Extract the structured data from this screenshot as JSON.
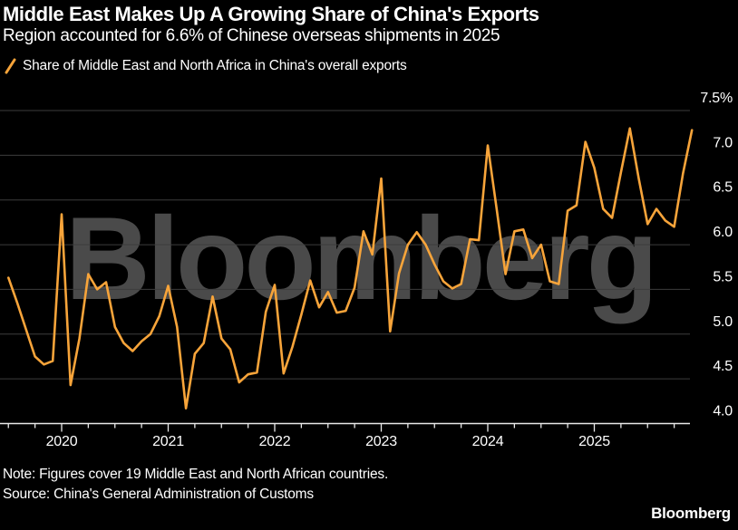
{
  "header": {
    "title": "Middle East Makes Up A Growing Share of China's Exports",
    "subtitle": "Region accounted for 6.6% of Chinese overseas shipments in 2025"
  },
  "legend": {
    "label": "Share of Middle East and North Africa in China's overall exports"
  },
  "chart_data": {
    "type": "line",
    "title": "Middle East Makes Up A Growing Share of China's Exports",
    "watermark": "Bloomberg",
    "grid": "horizontal",
    "x": [
      "2019-07",
      "2019-08",
      "2019-09",
      "2019-10",
      "2019-11",
      "2019-12",
      "2020-01",
      "2020-02",
      "2020-03",
      "2020-04",
      "2020-05",
      "2020-06",
      "2020-07",
      "2020-08",
      "2020-09",
      "2020-10",
      "2020-11",
      "2020-12",
      "2021-01",
      "2021-02",
      "2021-03",
      "2021-04",
      "2021-05",
      "2021-06",
      "2021-07",
      "2021-08",
      "2021-09",
      "2021-10",
      "2021-11",
      "2021-12",
      "2022-01",
      "2022-02",
      "2022-03",
      "2022-04",
      "2022-05",
      "2022-06",
      "2022-07",
      "2022-08",
      "2022-09",
      "2022-10",
      "2022-11",
      "2022-12",
      "2023-01",
      "2023-02",
      "2023-03",
      "2023-04",
      "2023-05",
      "2023-06",
      "2023-07",
      "2023-08",
      "2023-09",
      "2023-10",
      "2023-11",
      "2023-12",
      "2024-01",
      "2024-02",
      "2024-03",
      "2024-04",
      "2024-05",
      "2024-06",
      "2024-07",
      "2024-08",
      "2024-09",
      "2024-10",
      "2024-11",
      "2024-12",
      "2025-01",
      "2025-02",
      "2025-03",
      "2025-04",
      "2025-05",
      "2025-06",
      "2025-07",
      "2025-08",
      "2025-09",
      "2025-10",
      "2025-11",
      "2025-12"
    ],
    "series": [
      {
        "name": "Share of Middle East and North Africa in China's overall exports",
        "unit": "%",
        "values": [
          5.63,
          5.35,
          5.05,
          4.75,
          4.66,
          4.7,
          6.34,
          4.43,
          4.95,
          5.67,
          5.5,
          5.58,
          5.08,
          4.9,
          4.81,
          4.92,
          5.0,
          5.2,
          5.54,
          5.08,
          4.17,
          4.78,
          4.9,
          5.42,
          4.95,
          4.83,
          4.46,
          4.55,
          4.57,
          5.25,
          5.55,
          4.56,
          4.86,
          5.22,
          5.6,
          5.3,
          5.47,
          5.24,
          5.26,
          5.52,
          6.15,
          5.89,
          6.74,
          5.03,
          5.68,
          6.0,
          6.14,
          6.0,
          5.78,
          5.59,
          5.51,
          5.56,
          6.06,
          6.05,
          7.11,
          6.4,
          5.67,
          6.15,
          6.17,
          5.85,
          6.0,
          5.59,
          5.56,
          6.38,
          6.44,
          7.15,
          6.86,
          6.4,
          6.3,
          6.81,
          7.3,
          6.74,
          6.23,
          6.4,
          6.27,
          6.2,
          6.8,
          7.28
        ]
      }
    ],
    "y_axis": {
      "side": "right",
      "range": [
        4.0,
        7.5
      ],
      "ticks": [
        7.5,
        7.0,
        6.5,
        6.0,
        5.5,
        5.0,
        4.5,
        4.0
      ],
      "top_label": "7.5%"
    },
    "x_axis": {
      "year_labels": [
        "2020",
        "2021",
        "2022",
        "2023",
        "2024",
        "2025"
      ],
      "minor_ticks": "quarterly"
    }
  },
  "footer": {
    "note": "Note: Figures cover 19 Middle East and North African countries.",
    "source": "Source: China's General Administration of Customs",
    "brand": "Bloomberg"
  },
  "colors": {
    "background": "#000000",
    "text": "#ffffff",
    "line": "#f7a43a",
    "grid": "#3d3d3d",
    "axis": "#e8e8e8",
    "watermark": "#4a4a4a"
  }
}
